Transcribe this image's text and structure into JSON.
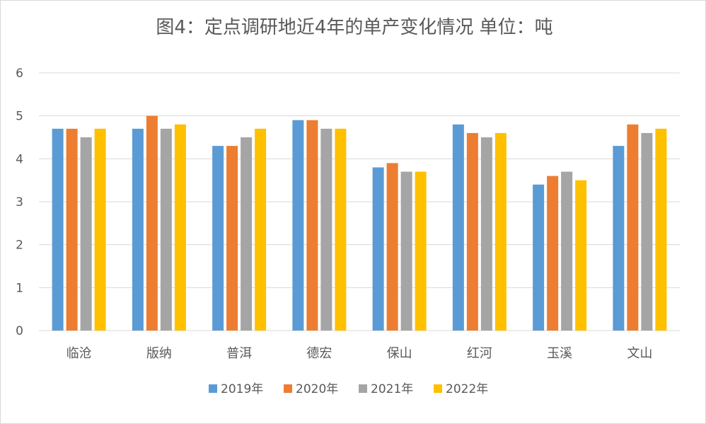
{
  "chart_data": {
    "type": "bar",
    "title": "图4：定点调研地近4年的单产变化情况 单位：吨",
    "xlabel": "",
    "ylabel": "",
    "ylim": [
      0,
      6
    ],
    "yticks": [
      0,
      1,
      2,
      3,
      4,
      5,
      6
    ],
    "grid": true,
    "legend_position": "bottom",
    "categories": [
      "临沧",
      "版纳",
      "普洱",
      "德宏",
      "保山",
      "红河",
      "玉溪",
      "文山"
    ],
    "series": [
      {
        "name": "2019年",
        "color": "#5b9bd5",
        "values": [
          4.7,
          4.7,
          4.3,
          4.9,
          3.8,
          4.8,
          3.4,
          4.3
        ]
      },
      {
        "name": "2020年",
        "color": "#ed7d31",
        "values": [
          4.7,
          5.0,
          4.3,
          4.9,
          3.9,
          4.6,
          3.6,
          4.8
        ]
      },
      {
        "name": "2021年",
        "color": "#a5a5a5",
        "values": [
          4.5,
          4.7,
          4.5,
          4.7,
          3.7,
          4.5,
          3.7,
          4.6
        ]
      },
      {
        "name": "2022年",
        "color": "#ffc000",
        "values": [
          4.7,
          4.8,
          4.7,
          4.7,
          3.7,
          4.6,
          3.5,
          4.7
        ]
      }
    ]
  }
}
